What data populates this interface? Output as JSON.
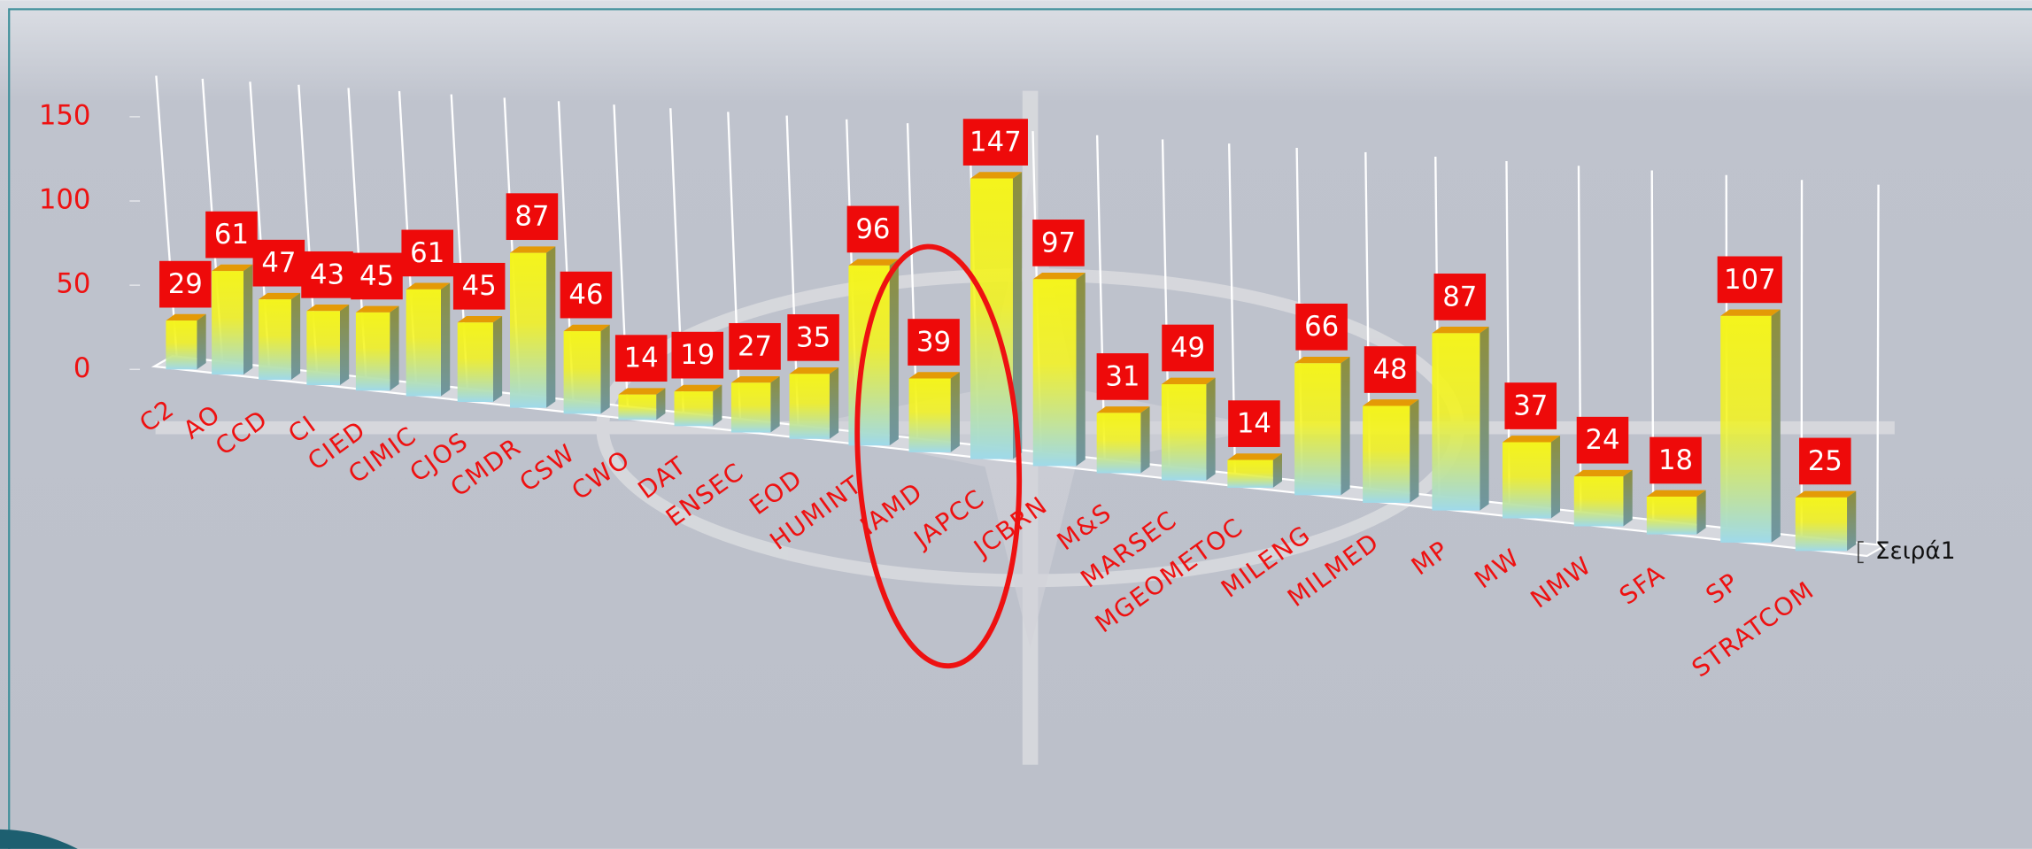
{
  "chart_data": {
    "type": "bar3d",
    "categories": [
      "C2",
      "AO",
      "CCD",
      "CI",
      "CIED",
      "CIMIC",
      "CJOS",
      "CMDR",
      "CSW",
      "CWO",
      "DAT",
      "ENSEC",
      "EOD",
      "HUMINT",
      "IAMD",
      "JAPCC",
      "JCBRN",
      "M&S",
      "MARSEC",
      "MGEOMETOC",
      "MILENG",
      "MILMED",
      "MP",
      "MW",
      "NMW",
      "SFA",
      "SP",
      "STRATCOM"
    ],
    "series": [
      {
        "name": "Σειρά1",
        "color": "#f4f41c",
        "values": [
          29,
          61,
          47,
          43,
          45,
          61,
          45,
          87,
          46,
          14,
          19,
          27,
          35,
          96,
          39,
          147,
          97,
          31,
          49,
          14,
          66,
          48,
          87,
          37,
          24,
          18,
          107,
          25
        ]
      }
    ],
    "ylim": [
      0,
      150
    ],
    "yticks": [
      0,
      50,
      100,
      150
    ],
    "data_labels": true
  }
}
